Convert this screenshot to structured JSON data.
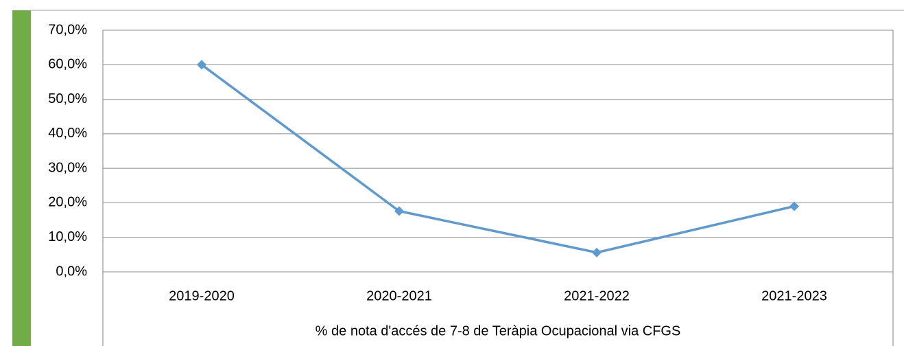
{
  "chart_data": {
    "type": "line",
    "x_label": "% de nota d'accés de 7-8 de Teràpia Ocupacional via CFGS",
    "categories": [
      "2019-2020",
      "2020-2021",
      "2021-2022",
      "2021-2023"
    ],
    "series": [
      {
        "color": "#5b9bd5",
        "values": [
          60,
          17.6,
          5.6,
          19
        ]
      }
    ],
    "ylim": [
      0,
      70
    ],
    "yticks": [
      {
        "value": 0,
        "label": "0,0%"
      },
      {
        "value": 10,
        "label": "10,0%"
      },
      {
        "value": 20,
        "label": "20,0%"
      },
      {
        "value": 30,
        "label": "30,0%"
      },
      {
        "value": 40,
        "label": "40,0%"
      },
      {
        "value": 50,
        "label": "50,0%"
      },
      {
        "value": 60,
        "label": "60,0%"
      },
      {
        "value": 70,
        "label": "70,0%"
      }
    ],
    "grid": true
  }
}
